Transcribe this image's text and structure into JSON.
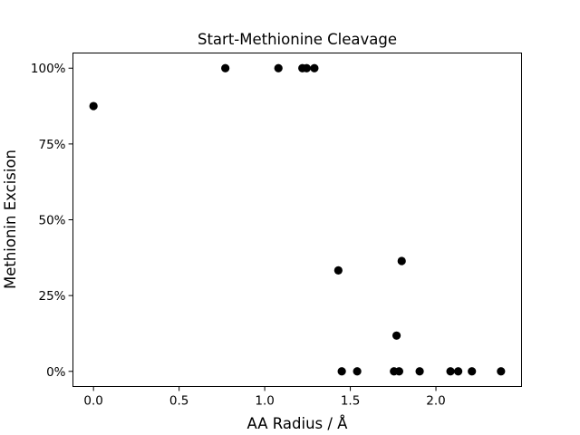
{
  "chart_data": {
    "type": "scatter",
    "title": "Start-Methionine Cleavage",
    "xlabel": "AA Radius / Å",
    "ylabel": "Methionin Excision",
    "xlim": [
      -0.12,
      2.5
    ],
    "ylim": [
      -0.05,
      1.05
    ],
    "x_ticks": [
      0.0,
      0.5,
      1.0,
      1.5,
      2.0
    ],
    "x_tick_labels": [
      "0.0",
      "0.5",
      "1.0",
      "1.5",
      "2.0"
    ],
    "y_ticks": [
      0.0,
      0.25,
      0.5,
      0.75,
      1.0
    ],
    "y_tick_labels": [
      "0%",
      "25%",
      "50%",
      "75%",
      "100%"
    ],
    "grid": false,
    "marker_color": "#000000",
    "points": [
      {
        "x": 0.0,
        "y": 0.875
      },
      {
        "x": 0.77,
        "y": 1.0
      },
      {
        "x": 1.08,
        "y": 1.0
      },
      {
        "x": 1.22,
        "y": 1.0
      },
      {
        "x": 1.245,
        "y": 1.0
      },
      {
        "x": 1.29,
        "y": 1.0
      },
      {
        "x": 1.43,
        "y": 0.333
      },
      {
        "x": 1.45,
        "y": 0.0
      },
      {
        "x": 1.54,
        "y": 0.0
      },
      {
        "x": 1.755,
        "y": 0.0
      },
      {
        "x": 1.77,
        "y": 0.118
      },
      {
        "x": 1.785,
        "y": 0.0
      },
      {
        "x": 1.8,
        "y": 0.364
      },
      {
        "x": 1.905,
        "y": 0.0
      },
      {
        "x": 2.085,
        "y": 0.0
      },
      {
        "x": 2.13,
        "y": 0.0
      },
      {
        "x": 2.21,
        "y": 0.0
      },
      {
        "x": 2.38,
        "y": 0.0
      }
    ]
  }
}
